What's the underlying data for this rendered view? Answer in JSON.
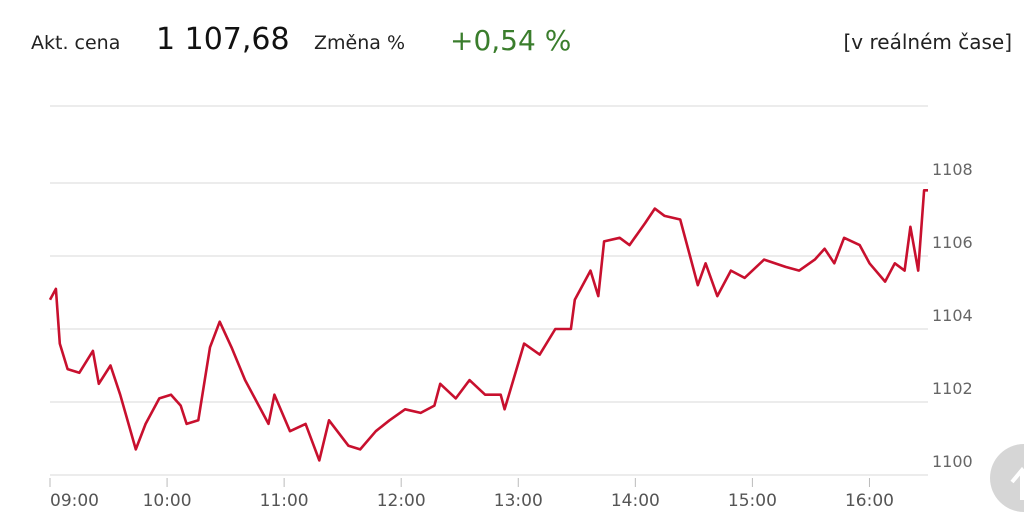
{
  "header": {
    "price_label": "Akt. cena",
    "price": "1 107,68",
    "change_label": "Změna %",
    "change": "+0,54 %",
    "realtime": "[v reálném čase]"
  },
  "chart_data": {
    "type": "line",
    "x": [
      "09:00",
      "09:03",
      "09:05",
      "09:09",
      "09:15",
      "09:22",
      "09:25",
      "09:31",
      "09:36",
      "09:44",
      "09:49",
      "09:56",
      "10:02",
      "10:07",
      "10:10",
      "10:16",
      "10:22",
      "10:27",
      "10:33",
      "10:40",
      "10:45",
      "10:52",
      "10:55",
      "11:03",
      "11:11",
      "11:18",
      "11:23",
      "11:33",
      "11:39",
      "11:47",
      "11:54",
      "12:02",
      "12:10",
      "12:17",
      "12:20",
      "12:28",
      "12:35",
      "12:43",
      "12:51",
      "12:53",
      "12:58",
      "13:03",
      "13:11",
      "13:19",
      "13:27",
      "13:29",
      "13:37",
      "13:41",
      "13:44",
      "13:52",
      "13:57",
      "14:05",
      "14:10",
      "14:15",
      "14:23",
      "14:28",
      "14:32",
      "14:36",
      "14:42",
      "14:49",
      "14:56",
      "15:06",
      "15:17",
      "15:24",
      "15:32",
      "15:37",
      "15:42",
      "15:47",
      "15:55",
      "16:00",
      "16:08",
      "16:13",
      "16:18",
      "16:21",
      "16:25",
      "16:28",
      "16:30"
    ],
    "series": [
      {
        "color": "#c8102e",
        "values": [
          1104.8,
          1105.1,
          1103.6,
          1102.9,
          1102.8,
          1103.4,
          1102.5,
          1103.0,
          1102.2,
          1100.7,
          1101.4,
          1102.1,
          1102.2,
          1101.9,
          1101.4,
          1101.5,
          1103.5,
          1104.2,
          1103.5,
          1102.6,
          1102.1,
          1101.4,
          1102.2,
          1101.2,
          1101.4,
          1100.4,
          1101.5,
          1100.8,
          1100.7,
          1101.2,
          1101.5,
          1101.8,
          1101.7,
          1101.9,
          1102.5,
          1102.1,
          1102.6,
          1102.2,
          1102.2,
          1101.8,
          1102.7,
          1103.6,
          1103.3,
          1104.0,
          1104.0,
          1104.8,
          1105.6,
          1104.9,
          1106.4,
          1106.5,
          1106.3,
          1106.9,
          1107.3,
          1107.1,
          1107.0,
          1106.0,
          1105.2,
          1105.8,
          1104.9,
          1105.6,
          1105.4,
          1105.9,
          1105.7,
          1105.6,
          1105.9,
          1106.2,
          1105.8,
          1106.5,
          1106.3,
          1105.8,
          1105.3,
          1105.8,
          1105.6,
          1106.8,
          1105.6,
          1107.8,
          1107.8
        ]
      }
    ],
    "xlim": [
      "09:00",
      "16:30"
    ],
    "xticks": [
      "09:00",
      "10:00",
      "11:00",
      "12:00",
      "13:00",
      "14:00",
      "15:00",
      "16:00"
    ],
    "ylim": [
      1100,
      1110
    ],
    "yticks": [
      1100,
      1102,
      1104,
      1106,
      1108
    ],
    "grid": true
  }
}
